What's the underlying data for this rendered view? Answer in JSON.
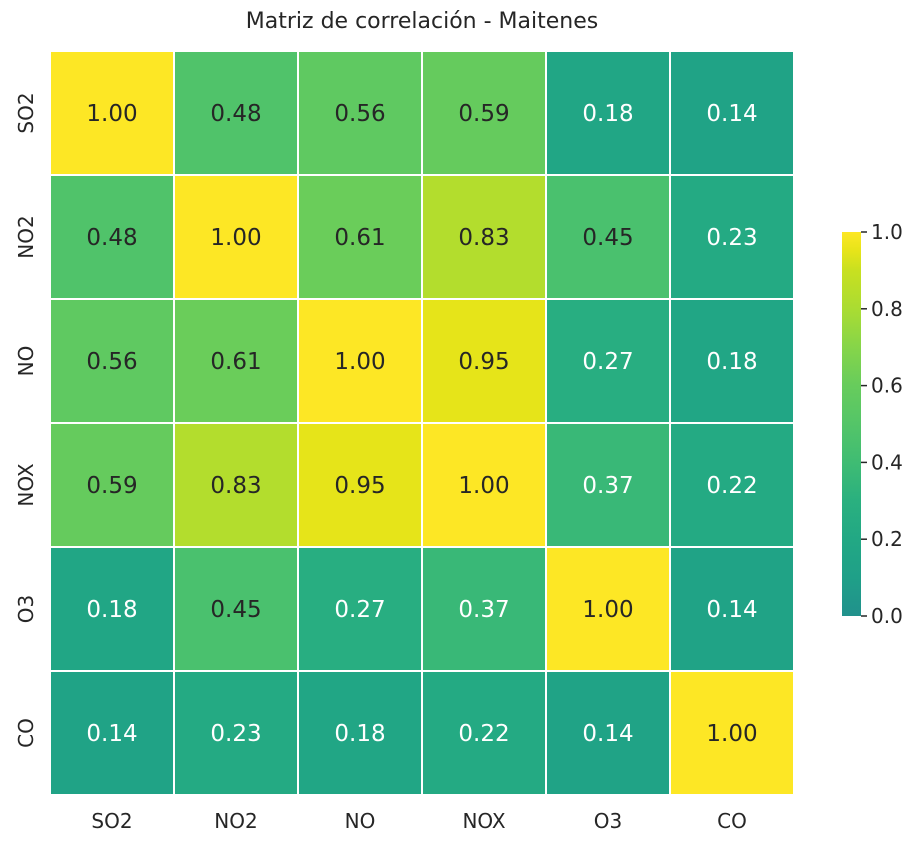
{
  "chart_data": {
    "type": "heatmap",
    "title": "Matriz de correlación - Maitenes",
    "x_labels": [
      "SO2",
      "NO2",
      "NO",
      "NOX",
      "O3",
      "CO"
    ],
    "y_labels": [
      "SO2",
      "NO2",
      "NO",
      "NOX",
      "O3",
      "CO"
    ],
    "values": [
      [
        1.0,
        0.48,
        0.56,
        0.59,
        0.18,
        0.14
      ],
      [
        0.48,
        1.0,
        0.61,
        0.83,
        0.45,
        0.23
      ],
      [
        0.56,
        0.61,
        1.0,
        0.95,
        0.27,
        0.18
      ],
      [
        0.59,
        0.83,
        0.95,
        1.0,
        0.37,
        0.22
      ],
      [
        0.18,
        0.45,
        0.27,
        0.37,
        1.0,
        0.14
      ],
      [
        0.14,
        0.23,
        0.18,
        0.22,
        0.14,
        1.0
      ]
    ],
    "value_format": "0.00",
    "vmin": 0.0,
    "vmax": 1.0,
    "colormap": "viridis (upper portion)",
    "colorbar": {
      "ticks": [
        0.0,
        0.2,
        0.4,
        0.6,
        0.8,
        1.0
      ],
      "tick_labels": [
        "0.0",
        "0.2",
        "0.4",
        "0.6",
        "0.8",
        "1.0"
      ],
      "placement": "right"
    },
    "colors": {
      "low": "#21918c",
      "high": "#fde725",
      "grid_lines": "#ffffff",
      "text_dark": "#262626",
      "text_light": "#ffffff"
    }
  }
}
